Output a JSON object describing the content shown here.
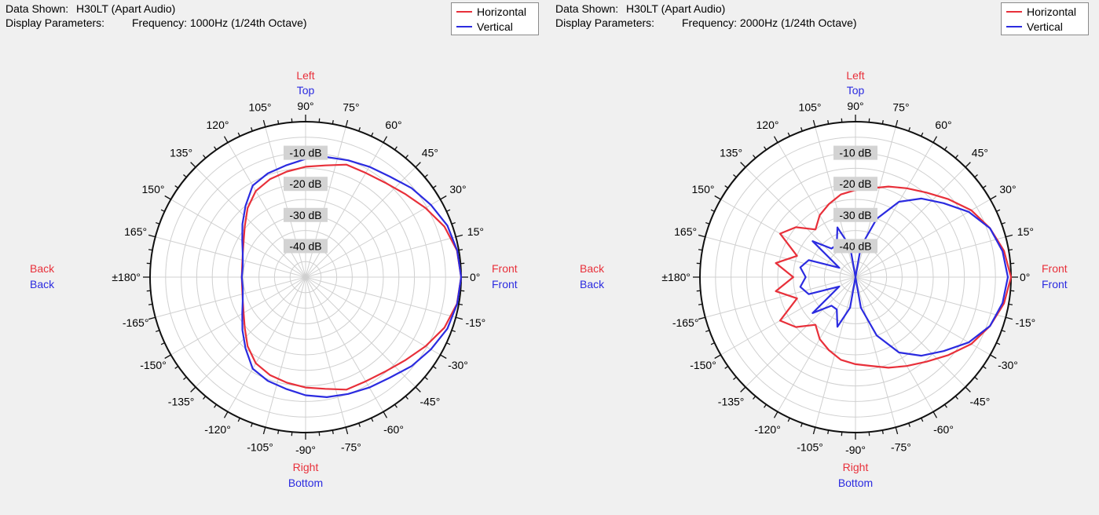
{
  "colors": {
    "horizontal": "#e8303a",
    "vertical": "#2b2be0",
    "grid": "#d0d0d0",
    "ring": "#111111",
    "db_box": "#d3d3d3"
  },
  "charts": [
    {
      "header": {
        "data_shown_label": "Data Shown:",
        "data_shown_value": "H30LT (Apart Audio)",
        "params_label": "Display Parameters:",
        "params_value": "Frequency: 1000Hz (1/24th Octave)"
      },
      "legend": [
        "Horizontal",
        "Vertical"
      ],
      "axis_labels": {
        "top_h": "Left",
        "top_v": "Top",
        "bottom_h": "Right",
        "bottom_v": "Bottom",
        "left_h": "Back",
        "left_v": "Back",
        "right_h": "Front",
        "right_v": "Front"
      },
      "angle_labels": [
        "0°",
        "15°",
        "30°",
        "45°",
        "60°",
        "75°",
        "90°",
        "105°",
        "120°",
        "135°",
        "150°",
        "165°",
        "±180°",
        "-165°",
        "-150°",
        "-135°",
        "-120°",
        "-105°",
        "-90°",
        "-75°",
        "-60°",
        "-45°",
        "-30°",
        "-15°"
      ],
      "db_labels": [
        "-10 dB",
        "-20 dB",
        "-30 dB",
        "-40 dB"
      ]
    },
    {
      "header": {
        "data_shown_label": "Data Shown:",
        "data_shown_value": "H30LT (Apart Audio)",
        "params_label": "Display Parameters:",
        "params_value": "Frequency: 2000Hz (1/24th Octave)"
      },
      "legend": [
        "Horizontal",
        "Vertical"
      ],
      "axis_labels": {
        "top_h": "Left",
        "top_v": "Top",
        "bottom_h": "Right",
        "bottom_v": "Bottom",
        "left_h": "Back",
        "left_v": "Back",
        "right_h": "Front",
        "right_v": "Front"
      },
      "angle_labels": [
        "0°",
        "15°",
        "30°",
        "45°",
        "60°",
        "75°",
        "90°",
        "105°",
        "120°",
        "135°",
        "150°",
        "165°",
        "±180°",
        "-165°",
        "-150°",
        "-135°",
        "-120°",
        "-105°",
        "-90°",
        "-75°",
        "-60°",
        "-45°",
        "-30°",
        "-15°"
      ],
      "db_labels": [
        "-10 dB",
        "-20 dB",
        "-30 dB",
        "-40 dB"
      ]
    }
  ],
  "chart_data": [
    {
      "type": "polar",
      "title": "H30LT (Apart Audio) — Frequency: 1000Hz (1/24th Octave)",
      "r_range_db": [
        -50,
        0
      ],
      "r_ticks_db": [
        -10,
        -20,
        -30,
        -40
      ],
      "angle_ticks_deg": [
        0,
        15,
        30,
        45,
        60,
        75,
        90,
        105,
        120,
        135,
        150,
        165,
        180,
        -165,
        -150,
        -135,
        -120,
        -105,
        -90,
        -75,
        -60,
        -45,
        -30,
        -15
      ],
      "series": [
        {
          "name": "Horizontal",
          "angles_deg": [
            0,
            10,
            20,
            30,
            40,
            50,
            60,
            70,
            80,
            90,
            100,
            110,
            120,
            130,
            140,
            150,
            160,
            170,
            180,
            190,
            200,
            210,
            220,
            230,
            240,
            250,
            260,
            270,
            280,
            290,
            300,
            310,
            320,
            330,
            340,
            350
          ],
          "values_db": [
            0,
            -0.6,
            -2.5,
            -5.5,
            -8.3,
            -10.3,
            -11.3,
            -11.5,
            -13.5,
            -14.5,
            -15.5,
            -16.5,
            -18,
            -21,
            -24.5,
            -27,
            -28.5,
            -29.3,
            -29.5,
            -29.3,
            -28.5,
            -27,
            -24.5,
            -21,
            -18,
            -16.5,
            -15.5,
            -14.5,
            -13.5,
            -11.5,
            -11.3,
            -10.3,
            -8.3,
            -5.5,
            -2.5,
            -0.6
          ]
        },
        {
          "name": "Vertical",
          "angles_deg": [
            0,
            10,
            20,
            30,
            40,
            50,
            60,
            70,
            80,
            90,
            100,
            110,
            120,
            130,
            140,
            150,
            160,
            170,
            180,
            190,
            200,
            210,
            220,
            230,
            240,
            250,
            260,
            270,
            280,
            290,
            300,
            310,
            320,
            330,
            340,
            350
          ],
          "values_db": [
            0,
            -0.5,
            -1.5,
            -3.5,
            -5.5,
            -7.8,
            -9.0,
            -10.0,
            -10.8,
            -12,
            -13.5,
            -14.5,
            -16,
            -20,
            -23.5,
            -26.5,
            -28.5,
            -29.5,
            -29.5,
            -29.5,
            -28.5,
            -26.5,
            -23.5,
            -20,
            -16,
            -14.5,
            -13.5,
            -12,
            -10.8,
            -10.0,
            -9.0,
            -7.8,
            -5.5,
            -3.5,
            -1.5,
            -0.5
          ]
        }
      ]
    },
    {
      "type": "polar",
      "title": "H30LT (Apart Audio) — Frequency: 2000Hz (1/24th Octave)",
      "r_range_db": [
        -50,
        0
      ],
      "r_ticks_db": [
        -10,
        -20,
        -30,
        -40
      ],
      "angle_ticks_deg": [
        0,
        15,
        30,
        45,
        60,
        75,
        90,
        105,
        120,
        135,
        150,
        165,
        180,
        -165,
        -150,
        -135,
        -120,
        -105,
        -90,
        -75,
        -60,
        -45,
        -30,
        -15
      ],
      "series": [
        {
          "name": "Horizontal",
          "angles_deg": [
            0,
            10,
            20,
            30,
            40,
            50,
            60,
            70,
            80,
            90,
            100,
            110,
            120,
            130,
            140,
            150,
            160,
            170,
            180,
            190,
            200,
            210,
            220,
            230,
            240,
            250,
            260,
            270,
            280,
            290,
            300,
            310,
            320,
            330,
            340,
            350
          ],
          "values_db": [
            0,
            -1.5,
            -4,
            -7,
            -11,
            -14.5,
            -17,
            -19,
            -21,
            -22,
            -23,
            -25,
            -27,
            -30,
            -25,
            -22,
            -30,
            -24,
            -30,
            -24,
            -30,
            -22,
            -25,
            -30,
            -27,
            -25,
            -23,
            -22,
            -21,
            -19,
            -17,
            -14.5,
            -11,
            -7,
            -4,
            -1.5
          ]
        },
        {
          "name": "Vertical",
          "angles_deg": [
            0,
            10,
            20,
            30,
            40,
            50,
            60,
            70,
            80,
            90,
            100,
            110,
            120,
            130,
            140,
            150,
            160,
            170,
            180,
            190,
            200,
            210,
            220,
            230,
            240,
            250,
            260,
            270,
            280,
            290,
            300,
            310,
            320,
            330,
            340,
            350
          ],
          "values_db": [
            -1,
            -2,
            -4,
            -8,
            -13,
            -17,
            -22,
            -30,
            -40,
            -50,
            -40,
            -33,
            -38,
            -38,
            -32,
            -44,
            -34,
            -32,
            -34,
            -32,
            -34,
            -44,
            -32,
            -38,
            -38,
            -33,
            -40,
            -50,
            -40,
            -30,
            -22,
            -17,
            -13,
            -8,
            -4,
            -2
          ]
        }
      ]
    }
  ]
}
